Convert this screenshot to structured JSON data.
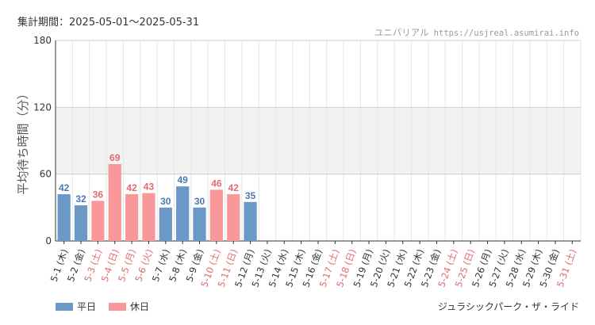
{
  "header": {
    "period": "集計期間：2025-05-01～2025-05-31",
    "site": "ユニバリアル",
    "url": "https://usjreal.asumirai.info"
  },
  "footer": {
    "attraction": "ジュラシックパーク・ザ・ライド"
  },
  "colors": {
    "weekday": "#6b98c6",
    "holiday": "#f8989a",
    "weekday_text": "#4a7ab0",
    "holiday_text": "#e06a6d",
    "band": "#f2f2f2"
  },
  "chart_data": {
    "type": "bar",
    "ylabel": "平均待ち時間（分）",
    "ylim": [
      0,
      180
    ],
    "yticks": [
      0,
      60,
      120,
      180
    ],
    "shaded_band": [
      60,
      120
    ],
    "legend": [
      {
        "key": "weekday",
        "label": "平日"
      },
      {
        "key": "holiday",
        "label": "休日"
      }
    ],
    "categories": [
      "5-1 (木)",
      "5-2 (金)",
      "5-3 (土)",
      "5-4 (日)",
      "5-5 (月)",
      "5-6 (火)",
      "5-7 (水)",
      "5-8 (木)",
      "5-9 (金)",
      "5-10 (土)",
      "5-11 (日)",
      "5-12 (月)",
      "5-13 (火)",
      "5-14 (水)",
      "5-15 (木)",
      "5-16 (金)",
      "5-17 (土)",
      "5-18 (日)",
      "5-19 (月)",
      "5-20 (火)",
      "5-21 (水)",
      "5-22 (木)",
      "5-23 (金)",
      "5-24 (土)",
      "5-25 (日)",
      "5-26 (月)",
      "5-27 (火)",
      "5-28 (水)",
      "5-29 (木)",
      "5-30 (金)",
      "5-31 (土)"
    ],
    "day_type": [
      "weekday",
      "weekday",
      "holiday",
      "holiday",
      "holiday",
      "holiday",
      "weekday",
      "weekday",
      "weekday",
      "holiday",
      "holiday",
      "weekday",
      "weekday",
      "weekday",
      "weekday",
      "weekday",
      "holiday",
      "holiday",
      "weekday",
      "weekday",
      "weekday",
      "weekday",
      "weekday",
      "holiday",
      "holiday",
      "weekday",
      "weekday",
      "weekday",
      "weekday",
      "weekday",
      "holiday"
    ],
    "values": [
      42,
      32,
      36,
      69,
      42,
      43,
      30,
      49,
      30,
      46,
      42,
      35,
      null,
      null,
      null,
      null,
      null,
      null,
      null,
      null,
      null,
      null,
      null,
      null,
      null,
      null,
      null,
      null,
      null,
      null,
      null
    ]
  }
}
